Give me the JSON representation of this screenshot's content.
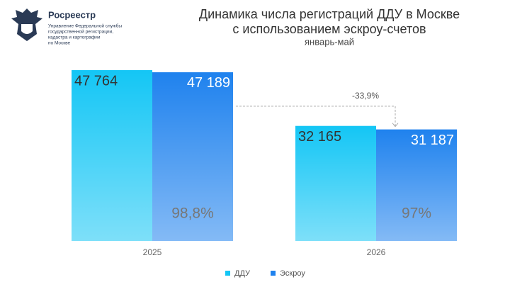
{
  "org": {
    "name": "Росреестр",
    "subtitle_lines": [
      "Управление Федеральной службы",
      "государственной регистрации,",
      "кадастра и картографии",
      "по Москве"
    ]
  },
  "chart_data": {
    "type": "bar",
    "title_lines": [
      "Динамика числа регистраций ДДУ в Москве",
      "с использованием эскроу-счетов"
    ],
    "subtitle": "январь-май",
    "categories": [
      "2025",
      "2026"
    ],
    "series": [
      {
        "name": "ДДУ",
        "color": "#14c6f5",
        "values": [
          47764,
          32165
        ],
        "value_labels": [
          "47 764",
          "32 165"
        ]
      },
      {
        "name": "Эскроу",
        "color": "#1f82ee",
        "values": [
          47189,
          31187
        ],
        "value_labels": [
          "47 189",
          "31 187"
        ]
      }
    ],
    "annotations": [
      "98,8%",
      "97%",
      "-33,9%"
    ],
    "ylim": [
      0,
      50000
    ],
    "legend": "bottom"
  }
}
